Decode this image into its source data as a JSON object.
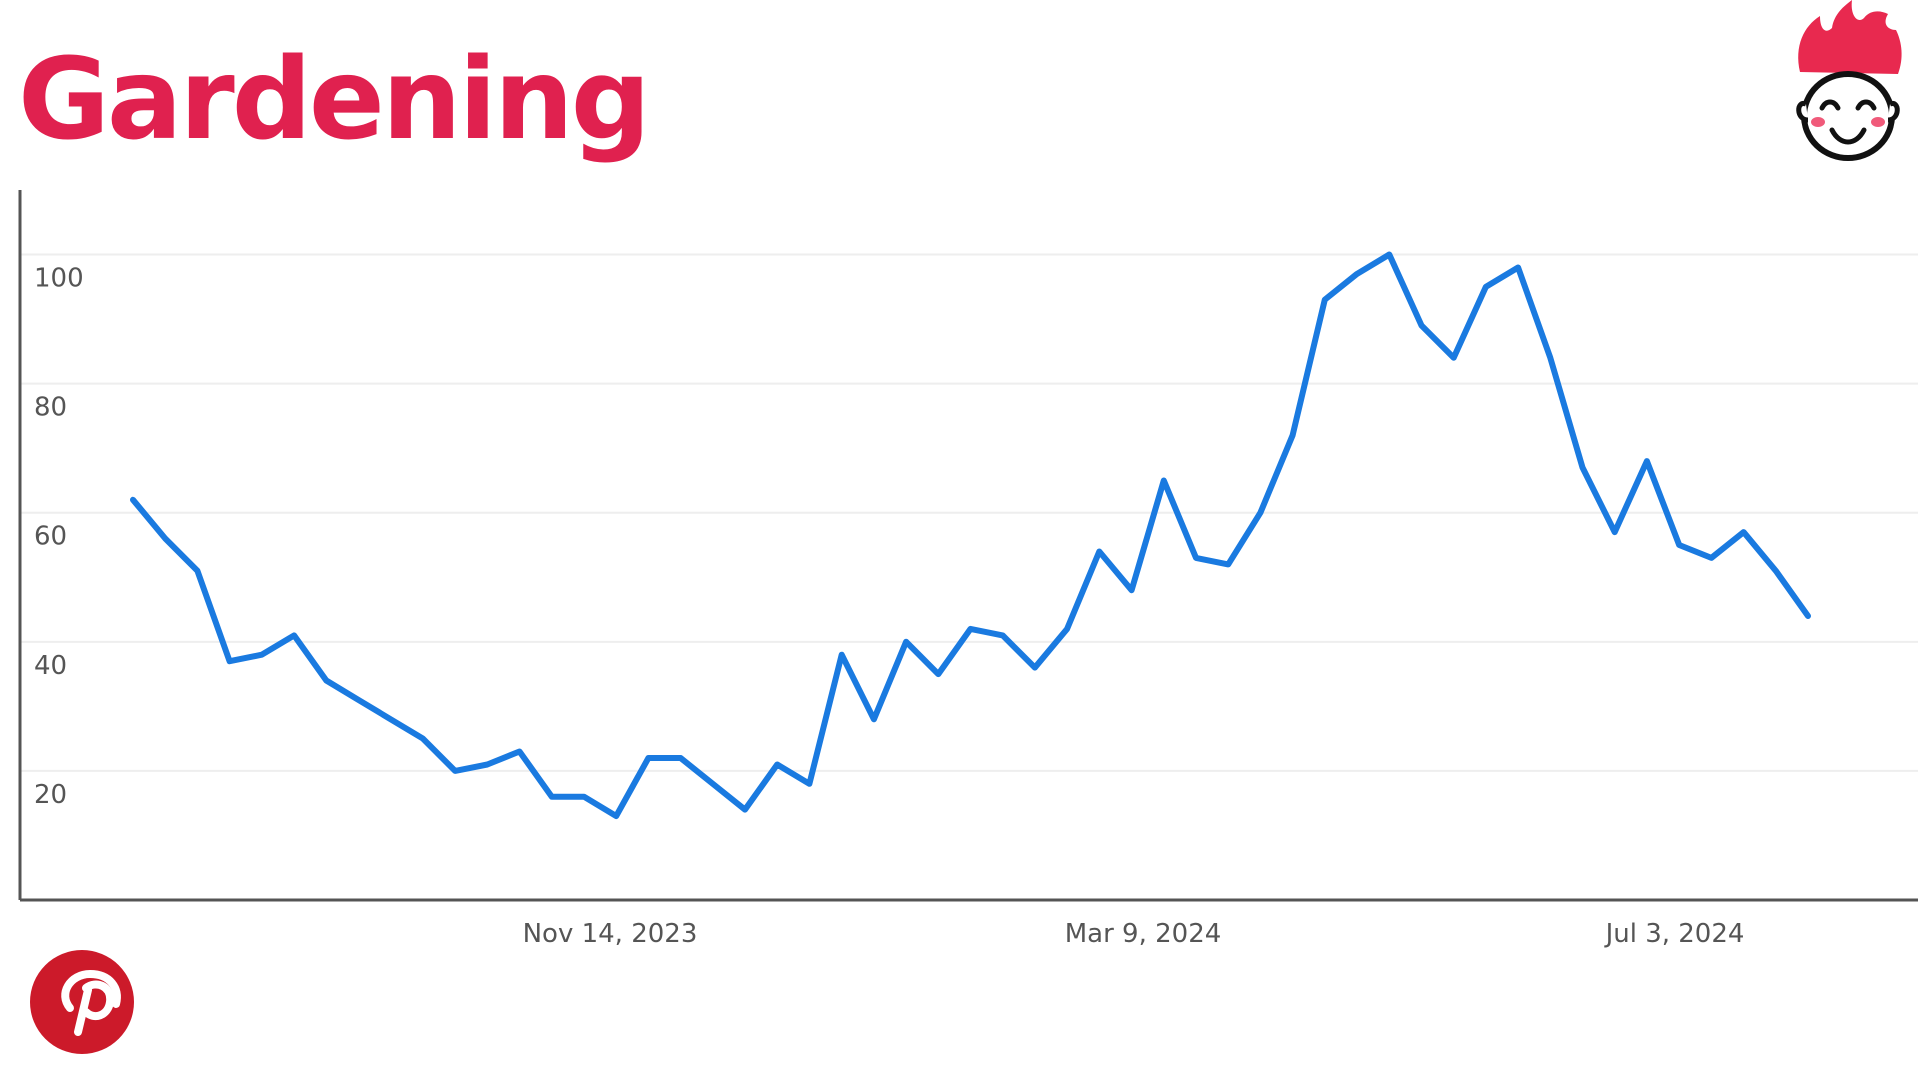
{
  "title": "Gardening",
  "colors": {
    "title": "#e0214f",
    "line": "#1a7ae0",
    "grid": "#eeeeee",
    "axis": "#555555",
    "pinterest": "#cc1a2a",
    "mascot_hair": "#e8294f"
  },
  "icons": [
    "pinterest-logo-icon",
    "mascot-face-icon"
  ],
  "chart_data": {
    "type": "line",
    "title": "Gardening",
    "xlabel": "",
    "ylabel": "",
    "ylim": [
      0,
      110
    ],
    "yticks": [
      20,
      40,
      60,
      80,
      100
    ],
    "xtick_labels": [
      "Nov 14, 2023",
      "Mar 9, 2024",
      "Jul 3, 2024"
    ],
    "grid": true,
    "series": [
      {
        "values": [
          62,
          56,
          51,
          37,
          38,
          41,
          34,
          31,
          28,
          25,
          20,
          21,
          23,
          16,
          16,
          13,
          22,
          22,
          18,
          14,
          21,
          18,
          38,
          28,
          40,
          35,
          42,
          41,
          36,
          42,
          54,
          48,
          65,
          53,
          52,
          60,
          72,
          93,
          97,
          100,
          89,
          84,
          95,
          98,
          84,
          67,
          57,
          68,
          55,
          53,
          57,
          51,
          44
        ]
      }
    ]
  }
}
